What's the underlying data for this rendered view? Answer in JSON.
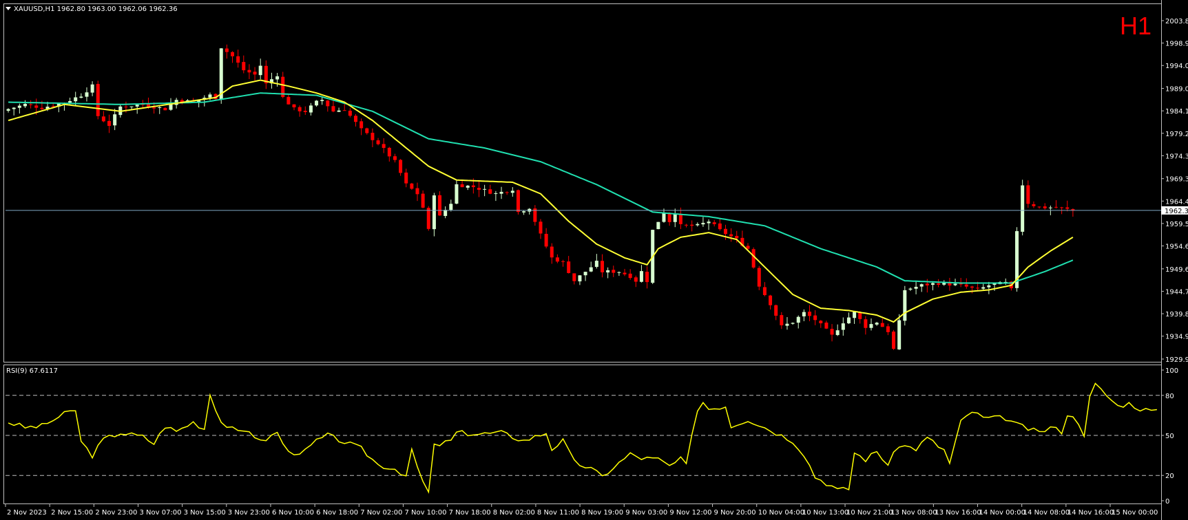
{
  "header": {
    "symbol_line": "XAUUSD,H1  1962.80 1963.00 1962.06 1962.36",
    "timeframe_badge": "H1"
  },
  "colors": {
    "background": "#000000",
    "frame": "#c0c0c0",
    "bull_candle": "#d8ffd0",
    "bear_candle": "#ff0000",
    "ma_fast": "#ffff33",
    "ma_slow": "#20e0b0",
    "rsi_line": "#ffff00",
    "price_line": "#7fa8c4",
    "badge": "#ff0000"
  },
  "chart_data": [
    {
      "type": "candlestick",
      "name": "price",
      "y_ticks": [
        "2003.80",
        "1998.90",
        "1994.00",
        "1989.00",
        "1984.10",
        "1979.20",
        "1974.30",
        "1969.30",
        "1964.40",
        "1959.50",
        "1954.60",
        "1949.60",
        "1944.70",
        "1939.80",
        "1934.90",
        "1929.90"
      ],
      "ylim": [
        1929.9,
        2003.8
      ],
      "current_price": 1962.36,
      "current_price_label": "1962.36",
      "x_ticks": [
        "2 Nov 2023",
        "2 Nov 15:00",
        "2 Nov 23:00",
        "3 Nov 07:00",
        "3 Nov 15:00",
        "3 Nov 23:00",
        "6 Nov 10:00",
        "6 Nov 18:00",
        "7 Nov 02:00",
        "7 Nov 10:00",
        "7 Nov 18:00",
        "8 Nov 02:00",
        "8 Nov 11:00",
        "8 Nov 19:00",
        "9 Nov 03:00",
        "9 Nov 12:00",
        "9 Nov 20:00",
        "10 Nov 04:00",
        "10 Nov 13:00",
        "10 Nov 21:00",
        "13 Nov 08:00",
        "13 Nov 16:00",
        "14 Nov 00:00",
        "14 Nov 08:00",
        "14 Nov 16:00",
        "15 Nov 00:00"
      ],
      "close_path": [
        [
          0,
          1984.5
        ],
        [
          3,
          1985.5
        ],
        [
          6,
          1984.8
        ],
        [
          10,
          1985.9
        ],
        [
          13,
          1987.5
        ],
        [
          15,
          1989.5
        ],
        [
          16,
          1983
        ],
        [
          18,
          1981
        ],
        [
          20,
          1985
        ],
        [
          24,
          1985.5
        ],
        [
          28,
          1984.5
        ],
        [
          30,
          1986.5
        ],
        [
          33,
          1986
        ],
        [
          36,
          1987.5
        ],
        [
          37,
          1987
        ],
        [
          38,
          1998
        ],
        [
          40,
          1996
        ],
        [
          42,
          1993
        ],
        [
          44,
          1992
        ],
        [
          45,
          1994
        ],
        [
          46,
          1990
        ],
        [
          48,
          1992
        ],
        [
          49,
          1987
        ],
        [
          51,
          1984.5
        ],
        [
          53,
          1984
        ],
        [
          55,
          1986
        ],
        [
          56,
          1986.5
        ],
        [
          58,
          1984
        ],
        [
          60,
          1984.5
        ],
        [
          63,
          1980
        ],
        [
          66,
          1977
        ],
        [
          69,
          1973
        ],
        [
          71,
          1968
        ],
        [
          73,
          1966
        ],
        [
          74,
          1963
        ],
        [
          75,
          1958
        ],
        [
          76,
          1966
        ],
        [
          77,
          1961
        ],
        [
          79,
          1964
        ],
        [
          80,
          1968
        ],
        [
          83,
          1967.5
        ],
        [
          87,
          1966
        ],
        [
          90,
          1967
        ],
        [
          91,
          1962
        ],
        [
          93,
          1963
        ],
        [
          95,
          1957
        ],
        [
          97,
          1952
        ],
        [
          99,
          1951
        ],
        [
          101,
          1947
        ],
        [
          104,
          1950
        ],
        [
          105,
          1951
        ],
        [
          106,
          1949
        ],
        [
          109,
          1949
        ],
        [
          111,
          1948
        ],
        [
          112,
          1947
        ],
        [
          113,
          1949
        ],
        [
          114,
          1947
        ],
        [
          115,
          1958
        ],
        [
          117,
          1962
        ],
        [
          118,
          1960
        ],
        [
          119,
          1962
        ],
        [
          120,
          1959
        ],
        [
          123,
          1959
        ],
        [
          125,
          1960
        ],
        [
          127,
          1958
        ],
        [
          130,
          1956
        ],
        [
          132,
          1954
        ],
        [
          134,
          1946
        ],
        [
          136,
          1942
        ],
        [
          138,
          1937
        ],
        [
          140,
          1938
        ],
        [
          142,
          1940
        ],
        [
          144,
          1938.5
        ],
        [
          147,
          1935
        ],
        [
          149,
          1938
        ],
        [
          151,
          1940
        ],
        [
          153,
          1937
        ],
        [
          155,
          1938
        ],
        [
          157,
          1936
        ],
        [
          158,
          1932
        ],
        [
          159,
          1938
        ],
        [
          160,
          1945
        ],
        [
          163,
          1946
        ],
        [
          166,
          1946.5
        ],
        [
          170,
          1946
        ],
        [
          173,
          1945
        ],
        [
          175,
          1946
        ],
        [
          178,
          1946.5
        ],
        [
          179,
          1945
        ],
        [
          180,
          1958
        ],
        [
          181,
          1968
        ],
        [
          182,
          1964
        ],
        [
          184,
          1963
        ],
        [
          187,
          1963
        ],
        [
          190,
          1962.36
        ]
      ],
      "ma_fast_path": [
        [
          0,
          1982
        ],
        [
          10,
          1985.5
        ],
        [
          20,
          1984
        ],
        [
          37,
          1987
        ],
        [
          40,
          1989.5
        ],
        [
          45,
          1990.8
        ],
        [
          50,
          1989.5
        ],
        [
          55,
          1988
        ],
        [
          60,
          1986
        ],
        [
          65,
          1982
        ],
        [
          70,
          1977
        ],
        [
          75,
          1972
        ],
        [
          80,
          1969
        ],
        [
          90,
          1968.5
        ],
        [
          95,
          1966
        ],
        [
          100,
          1960
        ],
        [
          105,
          1955
        ],
        [
          110,
          1952
        ],
        [
          114,
          1950.5
        ],
        [
          116,
          1954
        ],
        [
          120,
          1956.5
        ],
        [
          125,
          1957.5
        ],
        [
          130,
          1956
        ],
        [
          135,
          1950
        ],
        [
          140,
          1944
        ],
        [
          145,
          1941
        ],
        [
          150,
          1940.5
        ],
        [
          155,
          1939.5
        ],
        [
          158,
          1938
        ],
        [
          160,
          1940
        ],
        [
          165,
          1943
        ],
        [
          170,
          1944.5
        ],
        [
          175,
          1945
        ],
        [
          179,
          1946
        ],
        [
          182,
          1950
        ],
        [
          186,
          1953.5
        ],
        [
          190,
          1956.5
        ]
      ],
      "ma_slow_path": [
        [
          0,
          1986
        ],
        [
          20,
          1985.5
        ],
        [
          35,
          1986
        ],
        [
          45,
          1988
        ],
        [
          55,
          1987.5
        ],
        [
          65,
          1984
        ],
        [
          75,
          1978
        ],
        [
          85,
          1976
        ],
        [
          95,
          1973
        ],
        [
          105,
          1968
        ],
        [
          115,
          1962
        ],
        [
          125,
          1961
        ],
        [
          135,
          1959
        ],
        [
          145,
          1954
        ],
        [
          155,
          1950
        ],
        [
          160,
          1947
        ],
        [
          170,
          1946.5
        ],
        [
          179,
          1946.5
        ],
        [
          185,
          1949
        ],
        [
          190,
          1951.5
        ]
      ]
    },
    {
      "type": "line",
      "name": "rsi",
      "title": "RSI(9) 67.6117",
      "y_ticks": [
        "100",
        "80",
        "50",
        "20",
        "0"
      ],
      "ylim": [
        0,
        100
      ],
      "levels": [
        80,
        50,
        20
      ],
      "values_path": [
        [
          0,
          60
        ],
        [
          3,
          56
        ],
        [
          6,
          57
        ],
        [
          10,
          66
        ],
        [
          12,
          69
        ],
        [
          13,
          45
        ],
        [
          15,
          35
        ],
        [
          17,
          47
        ],
        [
          20,
          52
        ],
        [
          24,
          49
        ],
        [
          26,
          44
        ],
        [
          28,
          57
        ],
        [
          30,
          53
        ],
        [
          33,
          60
        ],
        [
          35,
          55
        ],
        [
          36,
          81
        ],
        [
          38,
          60
        ],
        [
          41,
          52
        ],
        [
          43,
          54
        ],
        [
          45,
          45
        ],
        [
          48,
          52
        ],
        [
          50,
          37
        ],
        [
          53,
          38
        ],
        [
          55,
          46
        ],
        [
          57,
          50
        ],
        [
          60,
          45
        ],
        [
          63,
          40
        ],
        [
          66,
          28
        ],
        [
          69,
          25
        ],
        [
          71,
          20
        ],
        [
          72,
          38
        ],
        [
          74,
          15
        ],
        [
          75,
          7
        ],
        [
          76,
          42
        ],
        [
          79,
          46
        ],
        [
          80,
          52
        ],
        [
          84,
          51
        ],
        [
          88,
          52
        ],
        [
          92,
          46
        ],
        [
          96,
          52
        ],
        [
          97,
          40
        ],
        [
          99,
          46
        ],
        [
          101,
          30
        ],
        [
          104,
          25
        ],
        [
          106,
          19
        ],
        [
          108,
          26
        ],
        [
          111,
          36
        ],
        [
          113,
          33
        ],
        [
          116,
          32
        ],
        [
          118,
          27
        ],
        [
          120,
          32
        ],
        [
          121,
          28
        ],
        [
          123,
          70
        ],
        [
          124,
          75
        ],
        [
          125,
          70
        ],
        [
          128,
          72
        ],
        [
          129,
          57
        ],
        [
          132,
          62
        ],
        [
          135,
          56
        ],
        [
          137,
          52
        ],
        [
          140,
          46
        ],
        [
          142,
          36
        ],
        [
          144,
          19
        ],
        [
          147,
          12
        ],
        [
          148,
          9
        ],
        [
          150,
          10
        ],
        [
          151,
          37
        ],
        [
          153,
          32
        ],
        [
          155,
          38
        ],
        [
          157,
          28
        ],
        [
          159,
          43
        ],
        [
          162,
          40
        ],
        [
          164,
          48
        ],
        [
          167,
          39
        ],
        [
          168,
          29
        ],
        [
          170,
          60
        ],
        [
          172,
          68
        ],
        [
          174,
          63
        ],
        [
          178,
          63
        ],
        [
          180,
          58
        ],
        [
          184,
          52
        ],
        [
          186,
          56
        ],
        [
          188,
          53
        ],
        [
          189,
          66
        ],
        [
          191,
          60
        ],
        [
          192,
          51
        ],
        [
          193,
          78
        ],
        [
          194,
          88
        ],
        [
          196,
          80
        ],
        [
          198,
          72
        ],
        [
          200,
          74
        ],
        [
          202,
          70
        ],
        [
          205,
          67.6
        ]
      ]
    }
  ]
}
